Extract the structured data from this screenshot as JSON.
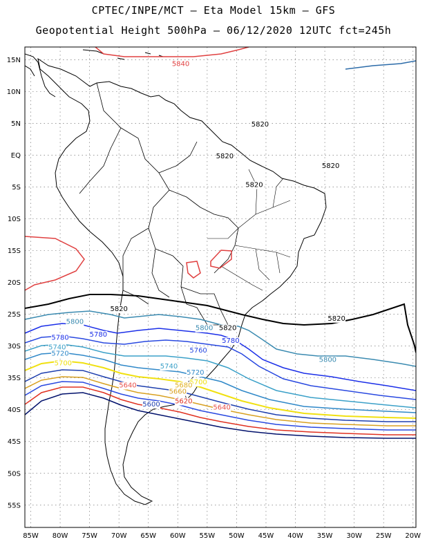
{
  "header": {
    "line1": "CPTEC/INPE/MCT –  Eta Model 15km – GFS",
    "line2": "Geopotential Height 500hPa – 06/12/2020 12UTC fct=245h"
  },
  "axes": {
    "lon_ticks": [
      "85W",
      "80W",
      "75W",
      "70W",
      "65W",
      "60W",
      "55W",
      "50W",
      "45W",
      "40W",
      "35W",
      "30W",
      "25W",
      "20W"
    ],
    "lat_ticks": [
      "15N",
      "10N",
      "5N",
      "EQ",
      "5S",
      "10S",
      "15S",
      "20S",
      "25S",
      "30S",
      "35S",
      "40S",
      "45S",
      "50S",
      "55S"
    ],
    "lon_range": [
      -86,
      -19.5
    ],
    "lat_range": [
      17,
      -58.5
    ],
    "grid": true
  },
  "contour_colors": {
    "5560": "#00106b",
    "5580": "#0a2a90",
    "5600": "#1e3fae",
    "5620": "#e03020",
    "5640": "#e8504a",
    "5660": "#d8a020",
    "5680": "#e0b020",
    "5700": "#f0e010",
    "5720": "#2f88c8",
    "5740": "#3aa0c8",
    "5760": "#2848e0",
    "5780": "#1a2ee8",
    "5800": "#3a8ab0",
    "5820": "#000000",
    "5840": "#e04040",
    "coast": "#000000"
  },
  "contour_labels": [
    {
      "text": "5840",
      "lon": -59.5,
      "lat": 14.0,
      "level": "5840"
    },
    {
      "text": "5820",
      "lon": -46.0,
      "lat": 4.5,
      "level": "5820"
    },
    {
      "text": "5820",
      "lon": -52.0,
      "lat": -0.5,
      "level": "5820"
    },
    {
      "text": "5820",
      "lon": -47.0,
      "lat": -5.0,
      "level": "5820"
    },
    {
      "text": "5820",
      "lon": -34.0,
      "lat": -2.0,
      "level": "5820"
    },
    {
      "text": "5820",
      "lon": -70.0,
      "lat": -24.5,
      "level": "5820"
    },
    {
      "text": "5820",
      "lon": -51.5,
      "lat": -27.5,
      "level": "5820"
    },
    {
      "text": "5820",
      "lon": -33.0,
      "lat": -26.0,
      "level": "5820"
    },
    {
      "text": "5800",
      "lon": -77.5,
      "lat": -26.5,
      "level": "5800"
    },
    {
      "text": "5800",
      "lon": -55.5,
      "lat": -27.5,
      "level": "5800"
    },
    {
      "text": "5800",
      "lon": -34.5,
      "lat": -32.5,
      "level": "5800"
    },
    {
      "text": "5780",
      "lon": -80.0,
      "lat": -29.0,
      "level": "5780"
    },
    {
      "text": "5780",
      "lon": -73.5,
      "lat": -28.5,
      "level": "5780"
    },
    {
      "text": "5780",
      "lon": -51.0,
      "lat": -29.5,
      "level": "5780"
    },
    {
      "text": "5760",
      "lon": -56.5,
      "lat": -31.0,
      "level": "5760"
    },
    {
      "text": "5740",
      "lon": -80.5,
      "lat": -30.5,
      "level": "5740"
    },
    {
      "text": "5740",
      "lon": -61.5,
      "lat": -33.5,
      "level": "5740"
    },
    {
      "text": "5720",
      "lon": -80.0,
      "lat": -31.5,
      "level": "5720"
    },
    {
      "text": "5720",
      "lon": -57.0,
      "lat": -34.5,
      "level": "5720"
    },
    {
      "text": "5700",
      "lon": -79.5,
      "lat": -33.0,
      "level": "5700"
    },
    {
      "text": "5700",
      "lon": -56.5,
      "lat": -36.0,
      "level": "5700"
    },
    {
      "text": "5680",
      "lon": -59.0,
      "lat": -36.5,
      "level": "5680"
    },
    {
      "text": "5660",
      "lon": -60.0,
      "lat": -37.5,
      "level": "5660"
    },
    {
      "text": "5640",
      "lon": -68.5,
      "lat": -36.5,
      "level": "5640"
    },
    {
      "text": "5640",
      "lon": -52.5,
      "lat": -40.0,
      "level": "5640"
    },
    {
      "text": "5620",
      "lon": -59.0,
      "lat": -39.0,
      "level": "5620"
    },
    {
      "text": "5600",
      "lon": -64.5,
      "lat": -39.5,
      "level": "5600"
    }
  ]
}
